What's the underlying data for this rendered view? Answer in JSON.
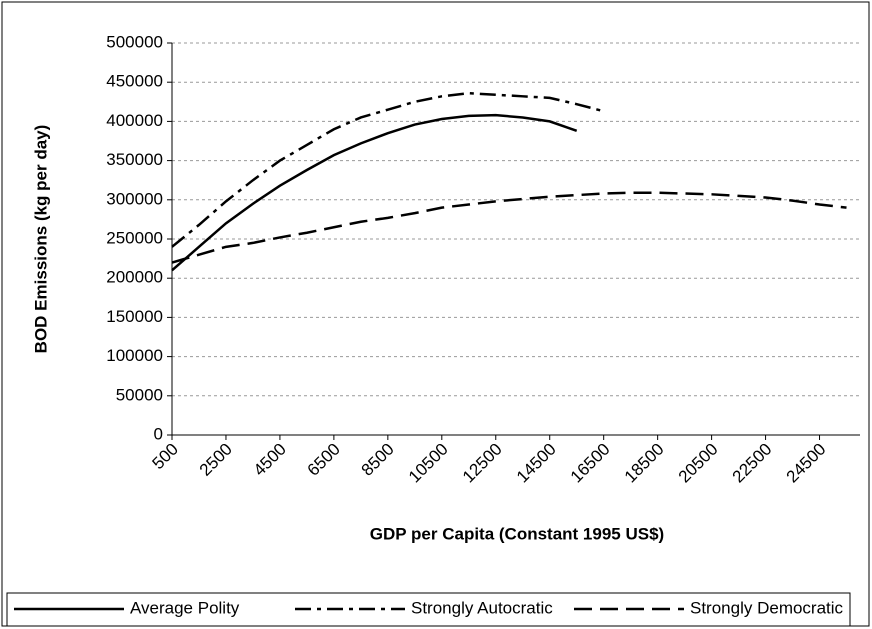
{
  "chart_data": {
    "type": "line",
    "xlabel": "GDP per Capita (Constant 1995 US$)",
    "ylabel": "BOD Emissions (kg per day)",
    "x": [
      500,
      1500,
      2500,
      3500,
      4500,
      5500,
      6500,
      7500,
      8500,
      9500,
      10500,
      11500,
      12500,
      13500,
      14500,
      15500,
      16500,
      17500,
      18500,
      19500,
      20500,
      21500,
      22500,
      23500,
      24500,
      25500
    ],
    "series": [
      {
        "name": "Average Polity",
        "color": "#000000",
        "style": "solid",
        "values": [
          210000,
          240000,
          270000,
          295000,
          318000,
          338000,
          357000,
          372000,
          385000,
          396000,
          403000,
          407000,
          408000,
          405000,
          400000,
          388000,
          null,
          null,
          null,
          null,
          null,
          null,
          null,
          null,
          null,
          null
        ]
      },
      {
        "name": "Strongly Autocratic",
        "color": "#000000",
        "style": "dashdot",
        "values": [
          240000,
          268000,
          298000,
          325000,
          350000,
          370000,
          390000,
          405000,
          415000,
          425000,
          432000,
          436000,
          434000,
          432000,
          430000,
          422000,
          413000,
          null,
          null,
          null,
          null,
          null,
          null,
          null,
          null,
          null
        ]
      },
      {
        "name": "Strongly Democratic",
        "color": "#000000",
        "style": "dashed",
        "values": [
          220000,
          230000,
          240000,
          245000,
          252000,
          258000,
          265000,
          272000,
          277000,
          283000,
          290000,
          294000,
          298000,
          301000,
          304000,
          306000,
          308000,
          309000,
          309000,
          308000,
          307000,
          305000,
          303000,
          299000,
          294000,
          290000
        ]
      }
    ],
    "xlim": [
      500,
      26000
    ],
    "xticks": [
      500,
      2500,
      4500,
      6500,
      8500,
      10500,
      12500,
      14500,
      16500,
      18500,
      20500,
      22500,
      24500
    ],
    "ylim": [
      0,
      500000
    ],
    "yticks": [
      0,
      50000,
      100000,
      150000,
      200000,
      250000,
      300000,
      350000,
      400000,
      450000,
      500000
    ],
    "grid": true,
    "legend": "bottom"
  }
}
